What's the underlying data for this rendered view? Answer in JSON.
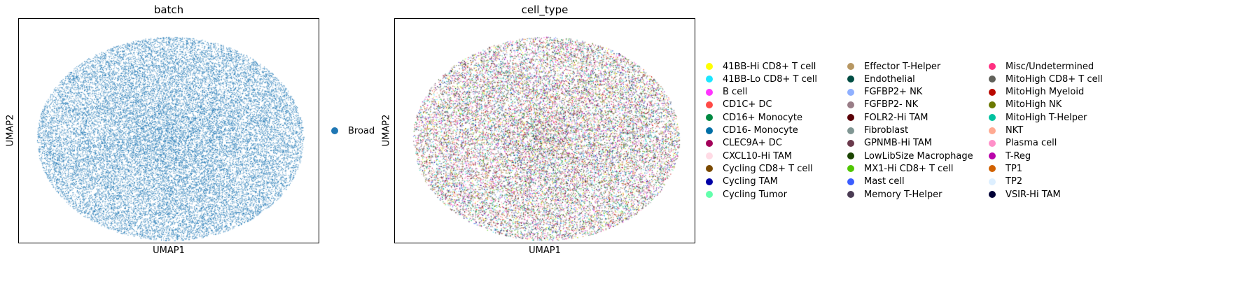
{
  "chart_data": [
    {
      "type": "scatter",
      "title": "batch",
      "xlabel": "UMAP1",
      "ylabel": "UMAP2",
      "grid": false,
      "legend_placement": "right",
      "series": [
        {
          "name": "Broad",
          "color": "#1f77b4"
        }
      ]
    },
    {
      "type": "scatter",
      "title": "cell_type",
      "xlabel": "UMAP1",
      "ylabel": "UMAP2",
      "grid": false,
      "legend_placement": "right",
      "series": [
        {
          "name": "41BB-Hi CD8+ T cell",
          "color": "#ffff00"
        },
        {
          "name": "41BB-Lo CD8+ T cell",
          "color": "#1ce6ff"
        },
        {
          "name": "B cell",
          "color": "#ff34ff"
        },
        {
          "name": "CD1C+ DC",
          "color": "#ff4a46"
        },
        {
          "name": "CD16+ Monocyte",
          "color": "#008941"
        },
        {
          "name": "CD16- Monocyte",
          "color": "#006fa6"
        },
        {
          "name": "CLEC9A+ DC",
          "color": "#a30059"
        },
        {
          "name": "CXCL10-Hi TAM",
          "color": "#ffdbe5"
        },
        {
          "name": "Cycling CD8+ T cell",
          "color": "#7a4900"
        },
        {
          "name": "Cycling TAM",
          "color": "#0000a6"
        },
        {
          "name": "Cycling Tumor",
          "color": "#63ffac"
        },
        {
          "name": "Effector T-Helper",
          "color": "#b79762"
        },
        {
          "name": "Endothelial",
          "color": "#004d43"
        },
        {
          "name": "FGFBP2+ NK",
          "color": "#8fb0ff"
        },
        {
          "name": "FGFBP2- NK",
          "color": "#997d87"
        },
        {
          "name": "FOLR2-Hi TAM",
          "color": "#5a0007"
        },
        {
          "name": "Fibroblast",
          "color": "#809693"
        },
        {
          "name": "GPNMB-Hi TAM",
          "color": "#6a3a4c"
        },
        {
          "name": "LowLibSize Macrophage",
          "color": "#1b4400"
        },
        {
          "name": "MX1-Hi CD8+ T cell",
          "color": "#4fc601"
        },
        {
          "name": "Mast cell",
          "color": "#3b5dff"
        },
        {
          "name": "Memory T-Helper",
          "color": "#4a3b53"
        },
        {
          "name": "Misc/Undetermined",
          "color": "#ff2f80"
        },
        {
          "name": "MitoHigh CD8+ T cell",
          "color": "#61615a"
        },
        {
          "name": "MitoHigh Myeloid",
          "color": "#ba0900"
        },
        {
          "name": "MitoHigh NK",
          "color": "#6b7900"
        },
        {
          "name": "MitoHigh T-Helper",
          "color": "#00c2a0"
        },
        {
          "name": "NKT",
          "color": "#ffaa92"
        },
        {
          "name": "Plasma cell",
          "color": "#ff90c9"
        },
        {
          "name": "T-Reg",
          "color": "#b903aa"
        },
        {
          "name": "TP1",
          "color": "#d16100"
        },
        {
          "name": "TP2",
          "color": "#ddefff"
        },
        {
          "name": "VSIR-Hi TAM",
          "color": "#000035"
        }
      ]
    }
  ]
}
